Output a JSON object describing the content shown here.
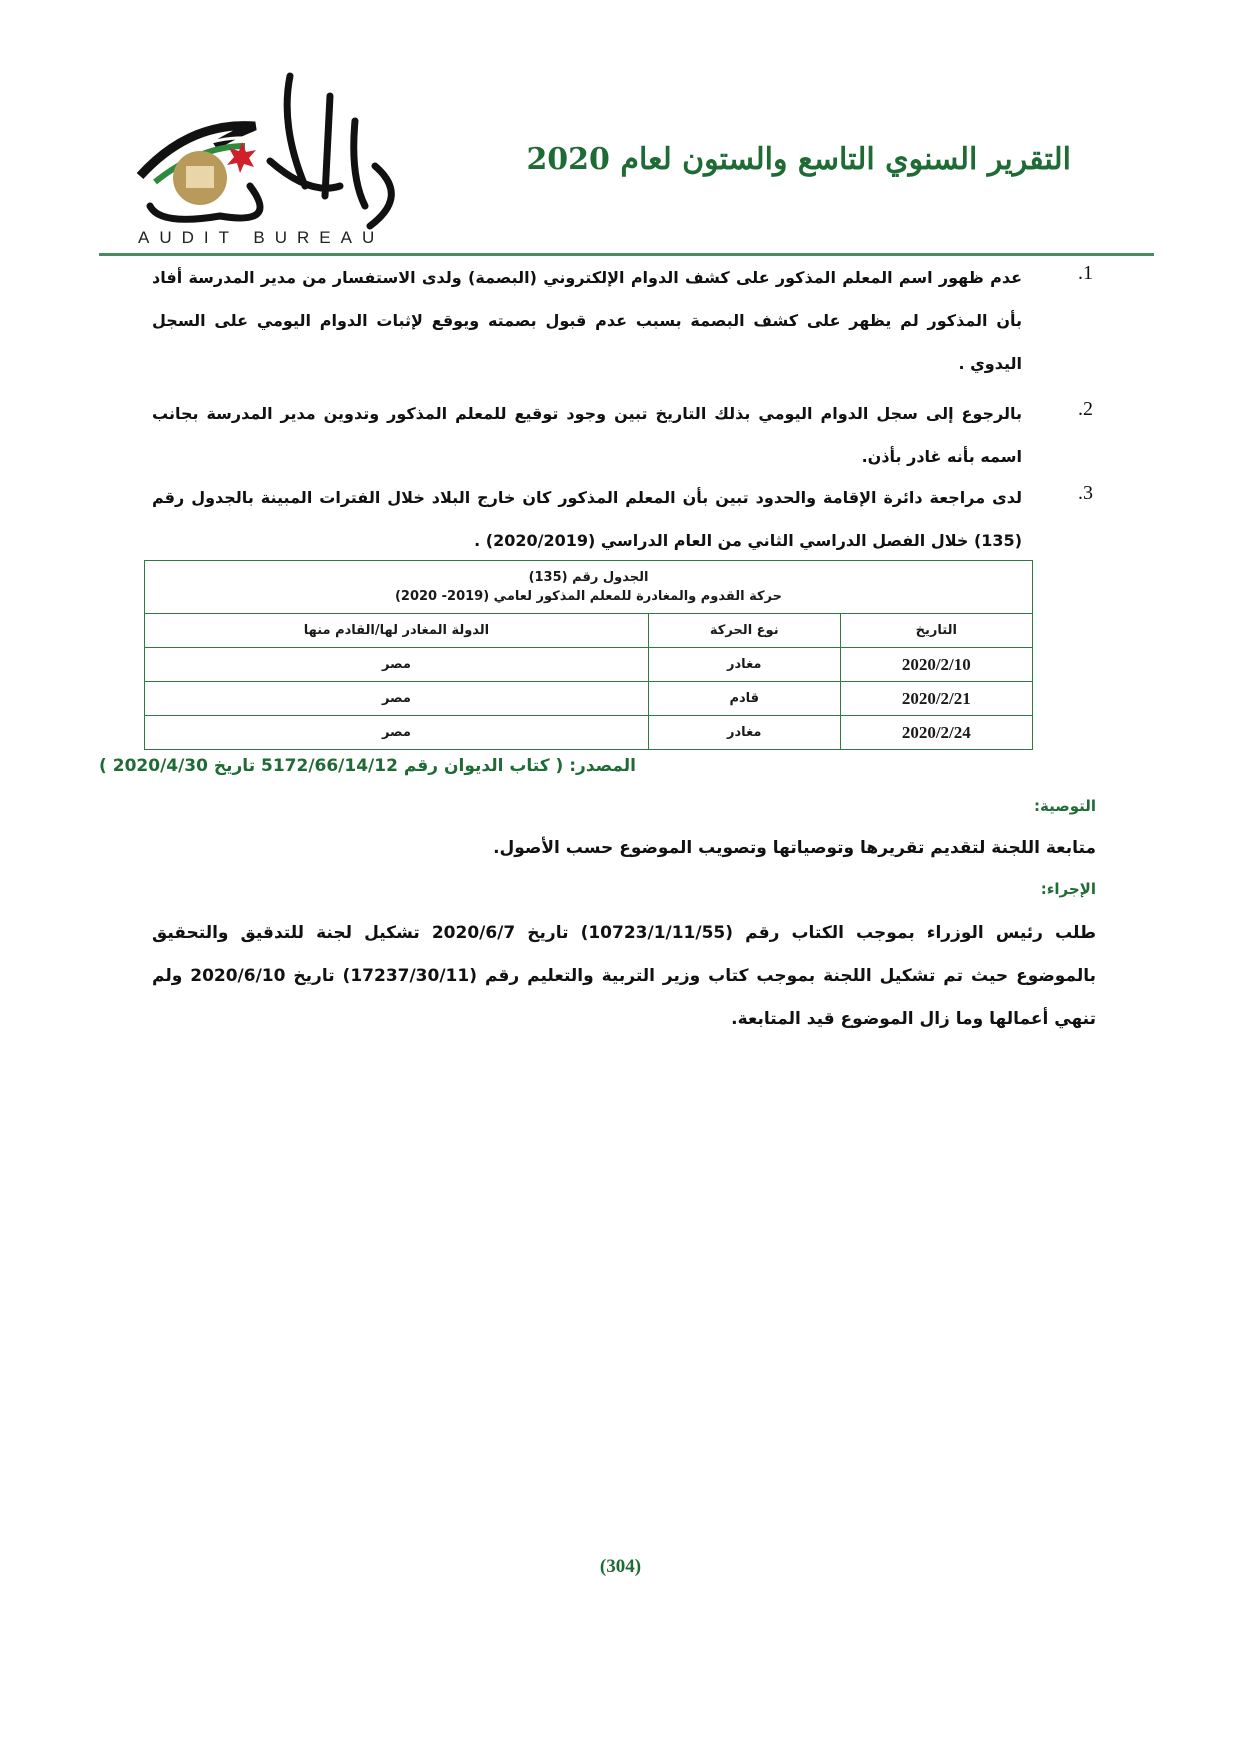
{
  "header": {
    "logo_text": "ديوان المحاسبة",
    "logo_subtitle": "AUDIT BUREAU",
    "title": "التقرير السنوي التاسع والستون لعام 2020",
    "brand_color": "#1f6b35"
  },
  "items": [
    {
      "number": ".1",
      "text": "عدم ظهور اسم المعلم المذكور على كشف الدوام الإلكتروني (البصمة) ولدى الاستفسار من مدير المدرسة أفاد بأن المذكور لم يظهر على كشف البصمة بسبب عدم قبول بصمته ويوقع لإثبات الدوام اليومي على السجل اليدوي ."
    },
    {
      "number": ".2",
      "text": "بالرجوع إلى سجل الدوام اليومي بذلك التاريخ تبين وجود توقيع للمعلم المذكور وتدوين مدير المدرسة بجانب اسمه بأنه غادر بأذن."
    },
    {
      "number": ".3",
      "text": "لدى مراجعة دائرة الإقامة والحدود تبين بأن المعلم المذكور كان خارج البلاد خلال الفترات المبينة بالجدول رقم (135) خلال الفصل الدراسي الثاني من العام الدراسي (2020/2019) ."
    }
  ],
  "table": {
    "caption_line1": "الجدول رقم (135)",
    "caption_line2": "حركة القدوم والمغادرة للمعلم المذكور لعامي (2019- 2020)",
    "columns": [
      "التاريخ",
      "نوع الحركة",
      "الدولة المغادر لها/القادم منها"
    ],
    "rows": [
      [
        "2020/2/10",
        "مغادر",
        "مصر"
      ],
      [
        "2020/2/21",
        "قادم",
        "مصر"
      ],
      [
        "2020/2/24",
        "مغادر",
        "مصر"
      ]
    ]
  },
  "source": "المصدر: ( كتاب الديوان رقم 5172/66/14/12 تاريخ 2020/4/30 )",
  "recommendation": {
    "heading": "التوصية:",
    "text": "متابعة اللجنة لتقديم تقريرها وتوصياتها وتصويب الموضوع حسب الأصول."
  },
  "action": {
    "heading": "الإجراء:",
    "text": "طلب رئيس الوزراء بموجب الكتاب رقم (10723/1/11/55) تاريخ 2020/6/7 تشكيل لجنة للتدقيق والتحقيق بالموضوع حيث تم تشكيل اللجنة بموجب كتاب وزير التربية والتعليم رقم (17237/30/11) تاريخ 2020/6/10 ولم تنهي أعمالها وما زال الموضوع قيد المتابعة."
  },
  "page_number": "(304)"
}
